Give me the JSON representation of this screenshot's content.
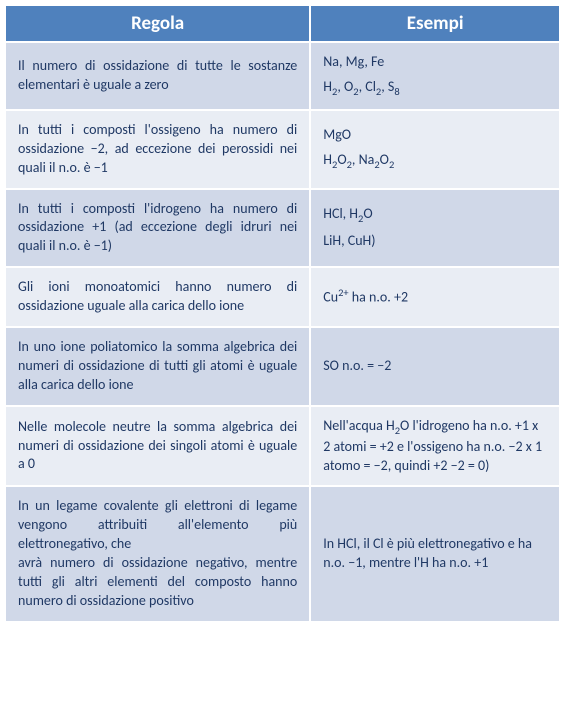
{
  "colors": {
    "header_bg": "#4f81bd",
    "header_fg": "#ffffff",
    "row_odd_bg": "#d0d8e8",
    "row_even_bg": "#e9edf4",
    "text": "#1f3864"
  },
  "layout": {
    "col1_width_pct": 55,
    "col2_width_pct": 45,
    "header_fontsize_pt": 14,
    "cell_fontsize_pt": 10
  },
  "headers": {
    "rule": "Regola",
    "examples": "Esempi"
  },
  "rows": [
    {
      "rule_html": "Il numero di ossidazione di tutte le sostanze elementari è uguale a zero",
      "example_html": "Na, Mg, Fe<span class='espace'></span>H<span class='sub'>2</span>, O<span class='sub'>2</span>, Cl<span class='sub'>2</span>, S<span class='sub'>8</span>"
    },
    {
      "rule_html": "In tutti i composti l'ossigeno ha numero di ossidazione −2, ad eccezione dei perossidi nei quali il n.o. è −1",
      "example_html": "MgO<span class='espace'></span>H<span class='sub'>2</span>O<span class='sub'>2</span>, Na<span class='sub'>2</span>O<span class='sub'>2</span>"
    },
    {
      "rule_html": "In tutti i composti l'idrogeno ha numero di ossidazione +1 (ad eccezione degli idruri nei quali il n.o. è −1)",
      "example_html": "HCl, H<span class='sub'>2</span>O<span class='espace'></span>LiH, CuH)"
    },
    {
      "rule_html": "Gli ioni monoatomici hanno numero di ossidazione uguale alla carica dello ione",
      "example_html": "Cu<span class='sup'>2+</span> ha n.o. +2"
    },
    {
      "rule_html": "In uno ione poliatomico la somma algebrica dei numeri di ossidazione di tutti gli atomi è uguale alla carica dello ione",
      "example_html": "SO  n.o. = −2"
    },
    {
      "rule_html": "Nelle molecole neutre la somma algebrica dei numeri di ossidazione dei singoli atomi è uguale a 0",
      "example_html": "Nell'acqua H<span class='sub'>2</span>O l'idrogeno ha n.o. +1 x 2 atomi = +2 e l'ossigeno ha n.o. −2 x 1 atomo = −2, quindi +2 −2 = 0)"
    },
    {
      "rule_html": "In un legame covalente gli elettroni di legame vengono attribuiti all'elemento più elettronegativo, che<br>  avrà numero di ossidazione negativo, mentre tutti gli altri elementi del composto hanno numero di ossidazione positivo",
      "example_html": "In HCl, il Cl è più elettronegativo e ha n.o. −1, mentre l'H ha n.o. +1"
    }
  ]
}
